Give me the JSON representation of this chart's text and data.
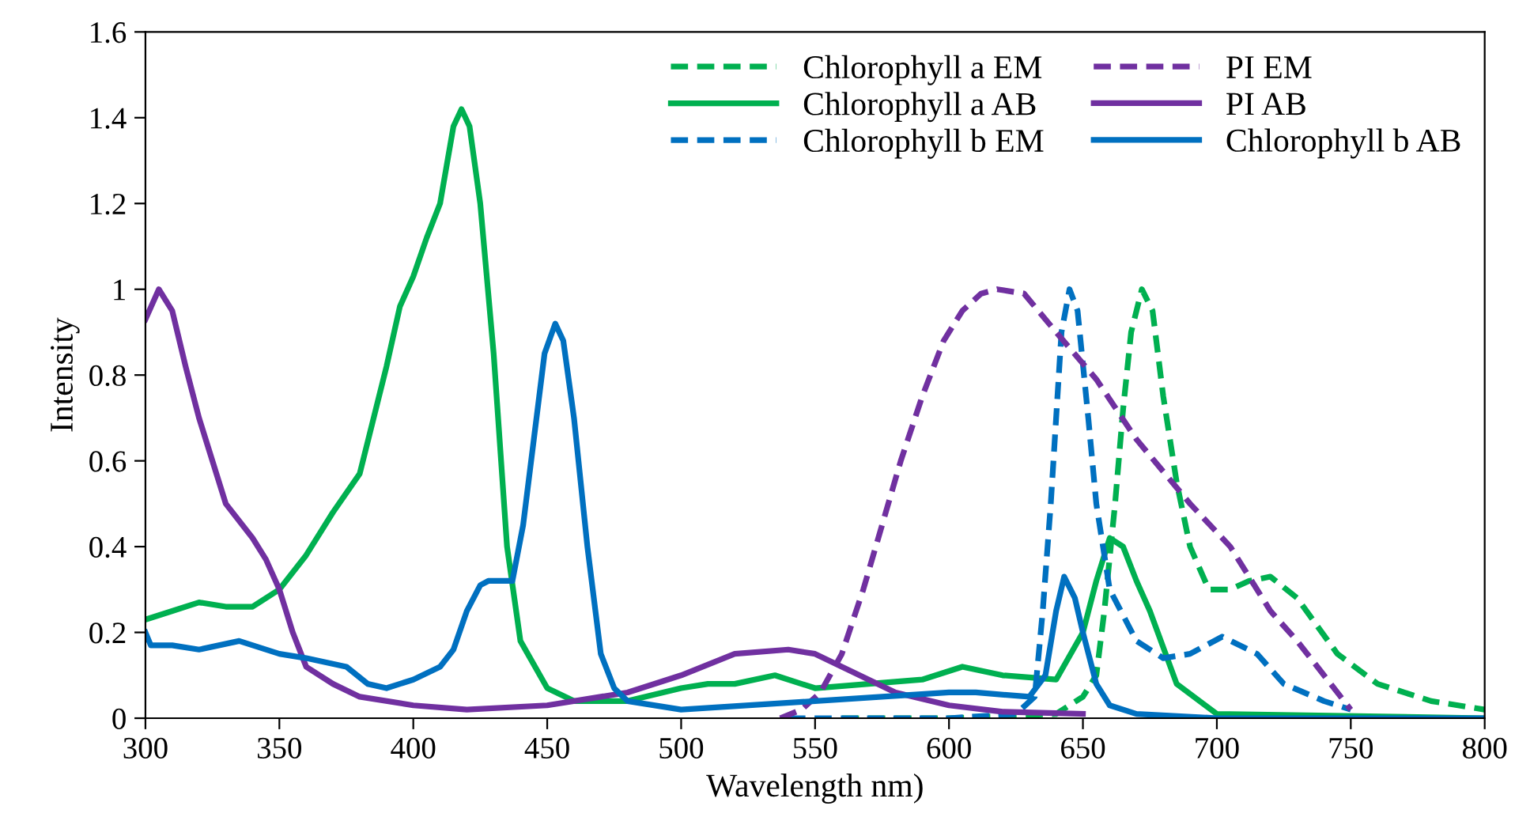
{
  "chart_data": {
    "type": "line",
    "xlabel": "Wavelength nm)",
    "ylabel": "Intensity",
    "xlim": [
      300,
      800
    ],
    "xticks": [
      300,
      350,
      400,
      450,
      500,
      550,
      600,
      650,
      700,
      750,
      800
    ],
    "ylim": [
      0,
      1.6
    ],
    "yticks": [
      0,
      0.2,
      0.4,
      0.6,
      0.8,
      1,
      1.2,
      1.4,
      1.6
    ],
    "grid": false,
    "legend": "top right",
    "marker": "none",
    "series": [
      {
        "name": "Chlorophyll a EM",
        "color": "#00b050",
        "line_style": "dashed",
        "x": [
          560,
          600,
          640,
          650,
          655,
          658,
          662,
          665,
          668,
          672,
          676,
          680,
          685,
          690,
          697,
          705,
          712,
          720,
          730,
          745,
          760,
          780,
          800
        ],
        "values": [
          0,
          0,
          0.01,
          0.05,
          0.1,
          0.25,
          0.5,
          0.72,
          0.9,
          1.0,
          0.95,
          0.75,
          0.55,
          0.4,
          0.3,
          0.3,
          0.32,
          0.33,
          0.28,
          0.15,
          0.08,
          0.04,
          0.02
        ]
      },
      {
        "name": "Chlorophyll a AB",
        "color": "#00b050",
        "line_style": "solid",
        "x": [
          300,
          310,
          320,
          330,
          340,
          350,
          360,
          370,
          380,
          390,
          395,
          400,
          405,
          410,
          415,
          418,
          421,
          425,
          430,
          435,
          440,
          450,
          460,
          480,
          500,
          510,
          520,
          535,
          550,
          570,
          590,
          605,
          620,
          640,
          650,
          655,
          660,
          665,
          670,
          675,
          685,
          700,
          800
        ],
        "values": [
          0.23,
          0.25,
          0.27,
          0.26,
          0.26,
          0.3,
          0.38,
          0.48,
          0.57,
          0.82,
          0.96,
          1.03,
          1.12,
          1.2,
          1.38,
          1.42,
          1.38,
          1.2,
          0.85,
          0.4,
          0.18,
          0.07,
          0.04,
          0.04,
          0.07,
          0.08,
          0.08,
          0.1,
          0.07,
          0.08,
          0.09,
          0.12,
          0.1,
          0.09,
          0.2,
          0.32,
          0.42,
          0.4,
          0.32,
          0.25,
          0.08,
          0.01,
          0
        ]
      },
      {
        "name": "Chlorophyll b EM",
        "color": "#0070c0",
        "line_style": "dashed",
        "x": [
          540,
          600,
          625,
          632,
          635,
          638,
          642,
          645,
          648,
          652,
          655,
          660,
          670,
          680,
          690,
          702,
          715,
          725,
          740,
          750
        ],
        "values": [
          0,
          0,
          0.01,
          0.05,
          0.25,
          0.5,
          0.9,
          1.0,
          0.95,
          0.7,
          0.5,
          0.3,
          0.18,
          0.14,
          0.15,
          0.19,
          0.15,
          0.08,
          0.04,
          0.02
        ]
      },
      {
        "name": "PI EM",
        "color": "#7030a0",
        "line_style": "dashed",
        "x": [
          537,
          545,
          552,
          560,
          568,
          575,
          582,
          590,
          598,
          605,
          612,
          618,
          628,
          640,
          655,
          670,
          690,
          705,
          720,
          730,
          740,
          750
        ],
        "values": [
          0,
          0.02,
          0.06,
          0.15,
          0.3,
          0.45,
          0.6,
          0.75,
          0.88,
          0.95,
          0.99,
          1.0,
          0.99,
          0.9,
          0.79,
          0.65,
          0.5,
          0.4,
          0.25,
          0.18,
          0.1,
          0.02
        ]
      },
      {
        "name": "PI AB",
        "color": "#7030a0",
        "line_style": "solid",
        "x": [
          300,
          305,
          310,
          315,
          320,
          330,
          340,
          345,
          350,
          355,
          360,
          370,
          380,
          400,
          420,
          450,
          480,
          500,
          520,
          540,
          550,
          560,
          570,
          580,
          600,
          620,
          650
        ],
        "values": [
          0.93,
          1.0,
          0.95,
          0.82,
          0.7,
          0.5,
          0.42,
          0.37,
          0.3,
          0.2,
          0.12,
          0.08,
          0.05,
          0.03,
          0.02,
          0.03,
          0.06,
          0.1,
          0.15,
          0.16,
          0.15,
          0.12,
          0.09,
          0.06,
          0.03,
          0.015,
          0.01
        ]
      },
      {
        "name": "Chlorophyll b AB",
        "color": "#0070c0",
        "line_style": "solid",
        "x": [
          300,
          302,
          310,
          320,
          335,
          350,
          360,
          375,
          383,
          390,
          400,
          410,
          415,
          420,
          425,
          428,
          437,
          441,
          445,
          449,
          453,
          456,
          460,
          465,
          470,
          475,
          480,
          500,
          550,
          600,
          610,
          630,
          636,
          640,
          643,
          647,
          650,
          655,
          660,
          670,
          700,
          800
        ],
        "values": [
          0.2,
          0.17,
          0.17,
          0.16,
          0.18,
          0.15,
          0.14,
          0.12,
          0.08,
          0.07,
          0.09,
          0.12,
          0.16,
          0.25,
          0.31,
          0.32,
          0.32,
          0.45,
          0.65,
          0.85,
          0.92,
          0.88,
          0.7,
          0.4,
          0.15,
          0.07,
          0.04,
          0.02,
          0.04,
          0.06,
          0.06,
          0.05,
          0.1,
          0.25,
          0.33,
          0.28,
          0.2,
          0.08,
          0.03,
          0.01,
          0,
          0
        ]
      }
    ]
  }
}
